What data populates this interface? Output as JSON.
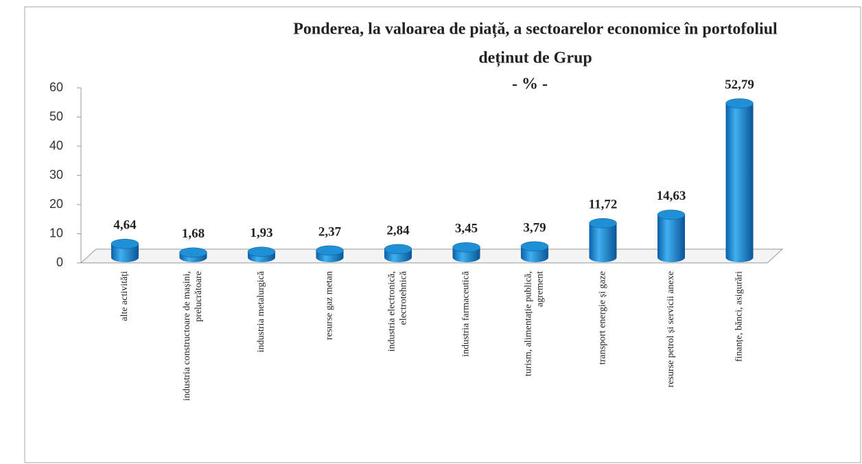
{
  "chart_data": {
    "type": "bar",
    "title": [
      "Ponderea, la valoarea de piață, a sectoarelor economice în portofoliul",
      "deținut de Grup"
    ],
    "subtitle": "- % -",
    "categories": [
      [
        "alte activități"
      ],
      [
        "industria constructoare de mașini,",
        "prelucrătoare"
      ],
      [
        "industria metalurgică"
      ],
      [
        "resurse gaz metan"
      ],
      [
        "industria electronică,",
        "electrotehnică"
      ],
      [
        "industria farmaceutică"
      ],
      [
        "turism, alimentație publică,",
        "agrement"
      ],
      [
        "transport energie și gaze"
      ],
      [
        "resurse petrol și servicii anexe"
      ],
      [
        "finanțe, bănci, asigurări"
      ]
    ],
    "values": [
      4.64,
      1.68,
      1.93,
      2.37,
      2.84,
      3.45,
      3.79,
      11.72,
      14.63,
      52.79
    ],
    "value_labels": [
      "4,64",
      "1,68",
      "1,93",
      "2,37",
      "2,84",
      "3,45",
      "3,79",
      "11,72",
      "14,63",
      "52,79"
    ],
    "color": "#1f8fd6",
    "ylim": [
      0,
      60
    ],
    "yticks": [
      0,
      10,
      20,
      30,
      40,
      50,
      60
    ],
    "grid": false
  }
}
